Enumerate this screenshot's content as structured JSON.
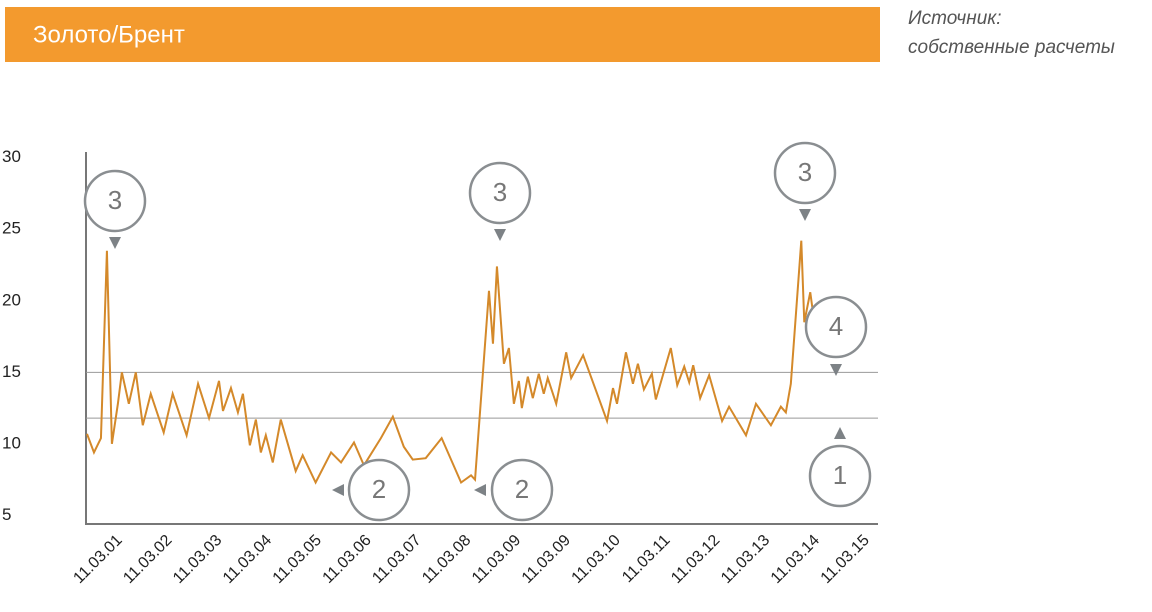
{
  "header": {
    "title": "Золото/Брент",
    "source": [
      "Источник:",
      "собственные расчеты"
    ]
  },
  "chart_data": {
    "type": "line",
    "x": [
      -0.58,
      -0.44,
      -0.3,
      -0.18,
      -0.08,
      0.04,
      0.12,
      0.26,
      0.4,
      0.54,
      0.7,
      0.96,
      1.14,
      1.42,
      1.65,
      1.87,
      2.07,
      2.15,
      2.31,
      2.45,
      2.55,
      2.69,
      2.81,
      2.91,
      3.01,
      3.15,
      3.31,
      3.61,
      3.75,
      4.01,
      4.32,
      4.52,
      4.78,
      4.98,
      5.32,
      5.56,
      5.78,
      5.96,
      6.22,
      6.54,
      6.93,
      7.13,
      7.21,
      7.49,
      7.57,
      7.65,
      7.79,
      7.89,
      7.99,
      8.09,
      8.15,
      8.27,
      8.37,
      8.49,
      8.59,
      8.67,
      8.84,
      9.04,
      9.14,
      9.38,
      9.86,
      9.98,
      10.06,
      10.24,
      10.38,
      10.48,
      10.6,
      10.76,
      10.84,
      11.14,
      11.27,
      11.41,
      11.51,
      11.59,
      11.73,
      11.91,
      12.17,
      12.31,
      12.65,
      12.85,
      13.15,
      13.35,
      13.45,
      13.55,
      13.76,
      13.82,
      13.94,
      14.08,
      14.22
    ],
    "series": [
      {
        "color": "#d4892a",
        "values": [
          10.7,
          9.4,
          10.4,
          23.5,
          10.0,
          12.8,
          15.0,
          12.8,
          15.0,
          11.3,
          13.5,
          10.8,
          13.5,
          10.6,
          14.2,
          11.8,
          14.4,
          12.3,
          13.9,
          12.2,
          13.5,
          9.9,
          11.7,
          9.4,
          10.6,
          8.7,
          11.7,
          8.1,
          9.2,
          7.3,
          9.4,
          8.7,
          10.1,
          8.5,
          10.4,
          11.9,
          9.8,
          8.9,
          9.0,
          10.4,
          7.3,
          7.8,
          7.5,
          20.7,
          17.0,
          22.4,
          15.6,
          16.7,
          12.8,
          14.4,
          12.5,
          14.7,
          13.2,
          14.9,
          13.5,
          14.6,
          12.8,
          16.4,
          14.6,
          16.2,
          11.6,
          13.9,
          12.8,
          16.4,
          14.2,
          15.6,
          13.8,
          14.9,
          13.1,
          16.7,
          14.1,
          15.4,
          14.3,
          15.5,
          13.2,
          14.8,
          11.6,
          12.6,
          10.6,
          12.8,
          11.3,
          12.6,
          12.2,
          14.2,
          24.2,
          18.5,
          20.6,
          17.0,
          18.4
        ]
      }
    ],
    "reference_lines": [
      15,
      11.8
    ],
    "xlim": [
      -0.6,
      15.3
    ],
    "xticks": [
      {
        "value": 0,
        "label": "11.03.01"
      },
      {
        "value": 1,
        "label": "11.03.02"
      },
      {
        "value": 2,
        "label": "11.03.03"
      },
      {
        "value": 3,
        "label": "11.03.04"
      },
      {
        "value": 4,
        "label": "11.03.05"
      },
      {
        "value": 5,
        "label": "11.03.06"
      },
      {
        "value": 6,
        "label": "11.03.07"
      },
      {
        "value": 7,
        "label": "11.03.08"
      },
      {
        "value": 8,
        "label": "11.03.09"
      },
      {
        "value": 9,
        "label": "11.03.09"
      },
      {
        "value": 10,
        "label": "11.03.10"
      },
      {
        "value": 11,
        "label": "11.03.11"
      },
      {
        "value": 12,
        "label": "11.03.12"
      },
      {
        "value": 13,
        "label": "11.03.13"
      },
      {
        "value": 14,
        "label": "11.03.14"
      },
      {
        "value": 15,
        "label": "11.03.15"
      }
    ],
    "ylim": [
      4.4,
      30.4
    ],
    "yticks": [
      5,
      10,
      15,
      20,
      25,
      30
    ],
    "annotations": [
      "3",
      "3",
      "3",
      "4",
      "2",
      "2",
      "1"
    ]
  }
}
